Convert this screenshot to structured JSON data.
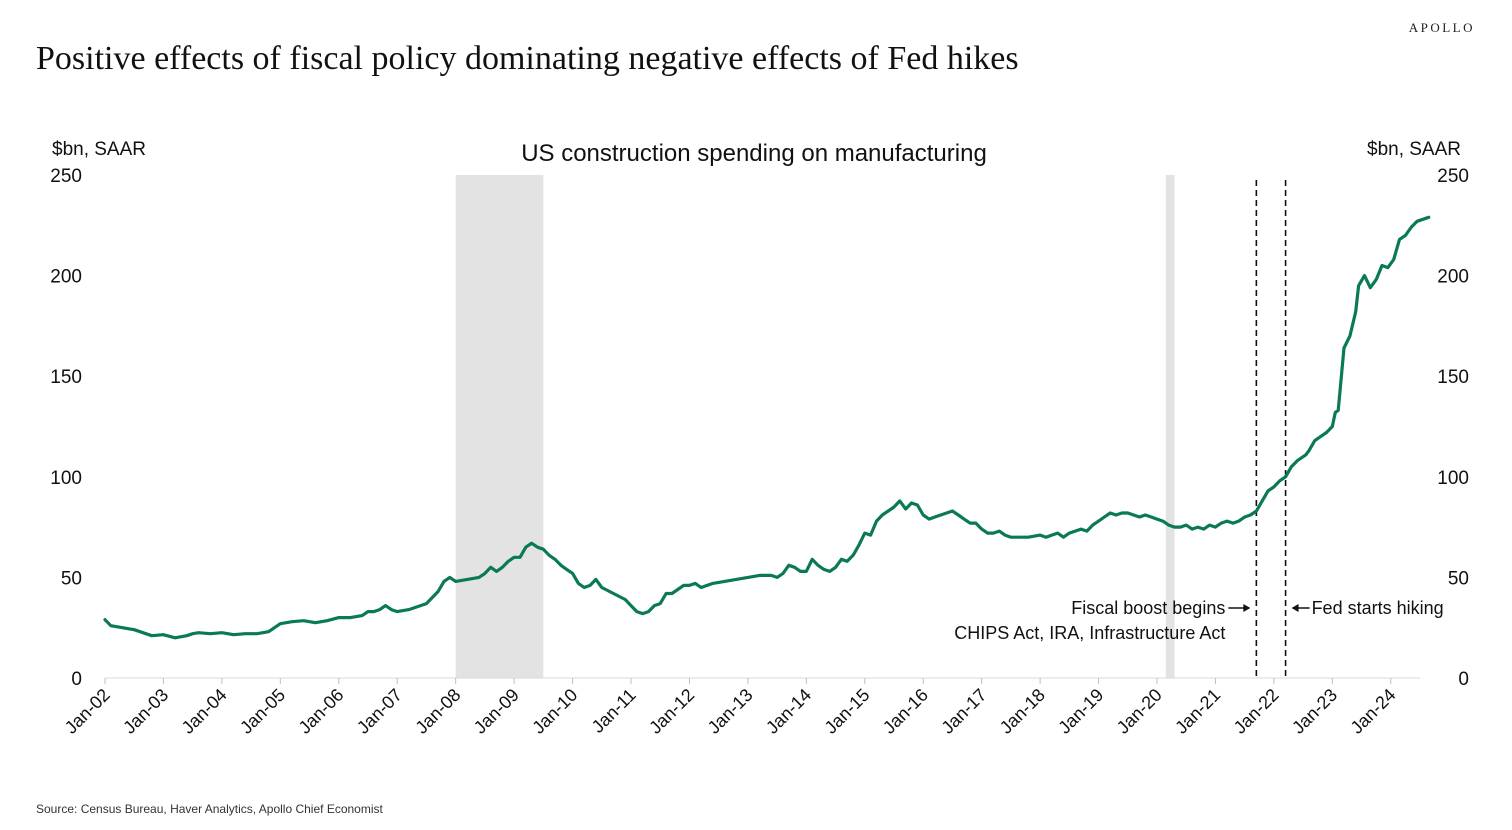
{
  "brand": "APOLLO",
  "headline": "Positive effects of  fiscal policy dominating negative effects of  Fed hikes",
  "source": "Source: Census Bureau, Haver Analytics, Apollo Chief Economist",
  "colors": {
    "line": "#0a7a55",
    "recession": "#e3e3e3",
    "annotation": "#111111"
  },
  "chart_data": {
    "type": "line",
    "title": "US construction spending on manufacturing",
    "ylabel_left": "$bn, SAAR",
    "ylabel_right": "$bn, SAAR",
    "ylim": [
      0,
      250
    ],
    "yticks": [
      0,
      50,
      100,
      150,
      200,
      250
    ],
    "xlim": [
      2002.0,
      2024.5
    ],
    "xticks": [
      {
        "x": 2002,
        "label": "Jan-02"
      },
      {
        "x": 2003,
        "label": "Jan-03"
      },
      {
        "x": 2004,
        "label": "Jan-04"
      },
      {
        "x": 2005,
        "label": "Jan-05"
      },
      {
        "x": 2006,
        "label": "Jan-06"
      },
      {
        "x": 2007,
        "label": "Jan-07"
      },
      {
        "x": 2008,
        "label": "Jan-08"
      },
      {
        "x": 2009,
        "label": "Jan-09"
      },
      {
        "x": 2010,
        "label": "Jan-10"
      },
      {
        "x": 2011,
        "label": "Jan-11"
      },
      {
        "x": 2012,
        "label": "Jan-12"
      },
      {
        "x": 2013,
        "label": "Jan-13"
      },
      {
        "x": 2014,
        "label": "Jan-14"
      },
      {
        "x": 2015,
        "label": "Jan-15"
      },
      {
        "x": 2016,
        "label": "Jan-16"
      },
      {
        "x": 2017,
        "label": "Jan-17"
      },
      {
        "x": 2018,
        "label": "Jan-18"
      },
      {
        "x": 2019,
        "label": "Jan-19"
      },
      {
        "x": 2020,
        "label": "Jan-20"
      },
      {
        "x": 2021,
        "label": "Jan-21"
      },
      {
        "x": 2022,
        "label": "Jan-22"
      },
      {
        "x": 2023,
        "label": "Jan-23"
      },
      {
        "x": 2024,
        "label": "Jan-24"
      }
    ],
    "grid": false,
    "recessions": [
      {
        "start": 2008.0,
        "end": 2009.5
      },
      {
        "start": 2020.15,
        "end": 2020.3
      }
    ],
    "vlines": [
      {
        "x": 2021.7,
        "label": "Fiscal boost begins",
        "sublabel": "CHIPS Act, IRA, Infrastructure Act",
        "side": "left"
      },
      {
        "x": 2022.2,
        "label": "Fed starts hiking",
        "side": "right"
      }
    ],
    "series": [
      {
        "values": [
          [
            2002.0,
            29
          ],
          [
            2002.1,
            26
          ],
          [
            2002.3,
            25
          ],
          [
            2002.5,
            24
          ],
          [
            2002.7,
            22
          ],
          [
            2002.8,
            21
          ],
          [
            2003.0,
            21.5
          ],
          [
            2003.2,
            20
          ],
          [
            2003.4,
            21
          ],
          [
            2003.5,
            22
          ],
          [
            2003.6,
            22.5
          ],
          [
            2003.8,
            22
          ],
          [
            2004.0,
            22.5
          ],
          [
            2004.2,
            21.5
          ],
          [
            2004.4,
            22
          ],
          [
            2004.6,
            22
          ],
          [
            2004.8,
            23
          ],
          [
            2005.0,
            27
          ],
          [
            2005.2,
            28
          ],
          [
            2005.4,
            28.5
          ],
          [
            2005.6,
            27.5
          ],
          [
            2005.8,
            28.5
          ],
          [
            2006.0,
            30
          ],
          [
            2006.2,
            30
          ],
          [
            2006.4,
            31
          ],
          [
            2006.5,
            33
          ],
          [
            2006.6,
            33
          ],
          [
            2006.7,
            34
          ],
          [
            2006.8,
            36
          ],
          [
            2006.9,
            34
          ],
          [
            2007.0,
            33
          ],
          [
            2007.2,
            34
          ],
          [
            2007.4,
            36
          ],
          [
            2007.5,
            37
          ],
          [
            2007.6,
            40
          ],
          [
            2007.7,
            43
          ],
          [
            2007.8,
            48
          ],
          [
            2007.9,
            50
          ],
          [
            2008.0,
            48
          ],
          [
            2008.2,
            49
          ],
          [
            2008.4,
            50
          ],
          [
            2008.5,
            52
          ],
          [
            2008.6,
            55
          ],
          [
            2008.7,
            53
          ],
          [
            2008.8,
            55
          ],
          [
            2008.9,
            58
          ],
          [
            2009.0,
            60
          ],
          [
            2009.1,
            60
          ],
          [
            2009.2,
            65
          ],
          [
            2009.3,
            67
          ],
          [
            2009.4,
            65
          ],
          [
            2009.5,
            64
          ],
          [
            2009.6,
            61
          ],
          [
            2009.7,
            59
          ],
          [
            2009.8,
            56
          ],
          [
            2009.9,
            54
          ],
          [
            2010.0,
            52
          ],
          [
            2010.1,
            47
          ],
          [
            2010.2,
            45
          ],
          [
            2010.3,
            46
          ],
          [
            2010.4,
            49
          ],
          [
            2010.5,
            45
          ],
          [
            2010.7,
            42
          ],
          [
            2010.9,
            39
          ],
          [
            2011.0,
            36
          ],
          [
            2011.1,
            33
          ],
          [
            2011.2,
            32
          ],
          [
            2011.3,
            33
          ],
          [
            2011.4,
            36
          ],
          [
            2011.5,
            37
          ],
          [
            2011.6,
            42
          ],
          [
            2011.7,
            42
          ],
          [
            2011.8,
            44
          ],
          [
            2011.9,
            46
          ],
          [
            2012.0,
            46
          ],
          [
            2012.1,
            47
          ],
          [
            2012.2,
            45
          ],
          [
            2012.4,
            47
          ],
          [
            2012.6,
            48
          ],
          [
            2012.8,
            49
          ],
          [
            2013.0,
            50
          ],
          [
            2013.2,
            51
          ],
          [
            2013.4,
            51
          ],
          [
            2013.5,
            50
          ],
          [
            2013.6,
            52
          ],
          [
            2013.7,
            56
          ],
          [
            2013.8,
            55
          ],
          [
            2013.9,
            53
          ],
          [
            2014.0,
            53
          ],
          [
            2014.1,
            59
          ],
          [
            2014.2,
            56
          ],
          [
            2014.3,
            54
          ],
          [
            2014.4,
            53
          ],
          [
            2014.5,
            55
          ],
          [
            2014.6,
            59
          ],
          [
            2014.7,
            58
          ],
          [
            2014.8,
            61
          ],
          [
            2014.9,
            66
          ],
          [
            2015.0,
            72
          ],
          [
            2015.1,
            71
          ],
          [
            2015.2,
            78
          ],
          [
            2015.3,
            81
          ],
          [
            2015.4,
            83
          ],
          [
            2015.5,
            85
          ],
          [
            2015.6,
            88
          ],
          [
            2015.7,
            84
          ],
          [
            2015.8,
            87
          ],
          [
            2015.9,
            86
          ],
          [
            2016.0,
            81
          ],
          [
            2016.1,
            79
          ],
          [
            2016.2,
            80
          ],
          [
            2016.3,
            81
          ],
          [
            2016.4,
            82
          ],
          [
            2016.5,
            83
          ],
          [
            2016.6,
            81
          ],
          [
            2016.7,
            79
          ],
          [
            2016.8,
            77
          ],
          [
            2016.9,
            77
          ],
          [
            2017.0,
            74
          ],
          [
            2017.1,
            72
          ],
          [
            2017.2,
            72
          ],
          [
            2017.3,
            73
          ],
          [
            2017.4,
            71
          ],
          [
            2017.5,
            70
          ],
          [
            2017.6,
            70
          ],
          [
            2017.8,
            70
          ],
          [
            2018.0,
            71
          ],
          [
            2018.1,
            70
          ],
          [
            2018.2,
            71
          ],
          [
            2018.3,
            72
          ],
          [
            2018.4,
            70
          ],
          [
            2018.5,
            72
          ],
          [
            2018.6,
            73
          ],
          [
            2018.7,
            74
          ],
          [
            2018.8,
            73
          ],
          [
            2018.9,
            76
          ],
          [
            2019.0,
            78
          ],
          [
            2019.1,
            80
          ],
          [
            2019.2,
            82
          ],
          [
            2019.3,
            81
          ],
          [
            2019.4,
            82
          ],
          [
            2019.5,
            82
          ],
          [
            2019.6,
            81
          ],
          [
            2019.7,
            80
          ],
          [
            2019.8,
            81
          ],
          [
            2019.9,
            80
          ],
          [
            2020.0,
            79
          ],
          [
            2020.1,
            78
          ],
          [
            2020.2,
            76
          ],
          [
            2020.3,
            75
          ],
          [
            2020.4,
            75
          ],
          [
            2020.5,
            76
          ],
          [
            2020.6,
            74
          ],
          [
            2020.7,
            75
          ],
          [
            2020.8,
            74
          ],
          [
            2020.9,
            76
          ],
          [
            2021.0,
            75
          ],
          [
            2021.1,
            77
          ],
          [
            2021.2,
            78
          ],
          [
            2021.3,
            77
          ],
          [
            2021.4,
            78
          ],
          [
            2021.5,
            80
          ],
          [
            2021.6,
            81
          ],
          [
            2021.7,
            83
          ],
          [
            2021.8,
            88
          ],
          [
            2021.9,
            93
          ],
          [
            2022.0,
            95
          ],
          [
            2022.1,
            98
          ],
          [
            2022.2,
            100
          ],
          [
            2022.3,
            105
          ],
          [
            2022.4,
            108
          ],
          [
            2022.5,
            110
          ],
          [
            2022.55,
            111
          ],
          [
            2022.6,
            113
          ],
          [
            2022.7,
            118
          ],
          [
            2022.8,
            120
          ],
          [
            2022.9,
            122
          ],
          [
            2023.0,
            125
          ],
          [
            2023.05,
            132
          ],
          [
            2023.1,
            133
          ],
          [
            2023.2,
            164
          ],
          [
            2023.3,
            170
          ],
          [
            2023.4,
            182
          ],
          [
            2023.45,
            195
          ],
          [
            2023.55,
            200
          ],
          [
            2023.65,
            194
          ],
          [
            2023.75,
            198
          ],
          [
            2023.85,
            205
          ],
          [
            2023.95,
            204
          ],
          [
            2024.05,
            208
          ],
          [
            2024.15,
            218
          ],
          [
            2024.25,
            220
          ],
          [
            2024.35,
            224
          ],
          [
            2024.45,
            227
          ],
          [
            2024.55,
            228
          ],
          [
            2024.65,
            229
          ]
        ]
      }
    ]
  }
}
